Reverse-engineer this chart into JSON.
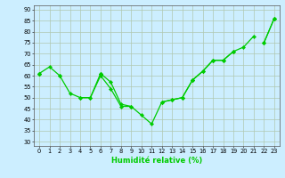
{
  "x_values": [
    0,
    1,
    2,
    3,
    4,
    5,
    6,
    7,
    8,
    9,
    10,
    11,
    12,
    13,
    14,
    15,
    16,
    17,
    18,
    19,
    20,
    21,
    22,
    23
  ],
  "series": [
    [
      61,
      64,
      60,
      52,
      50,
      50,
      61,
      57,
      47,
      46,
      42,
      38,
      48,
      49,
      50,
      58,
      62,
      67,
      67,
      71,
      73,
      78,
      null,
      86
    ],
    [
      61,
      null,
      60,
      null,
      50,
      50,
      60,
      54,
      46,
      46,
      null,
      null,
      null,
      null,
      null,
      58,
      null,
      67,
      null,
      null,
      null,
      null,
      null,
      null
    ],
    [
      61,
      null,
      null,
      null,
      null,
      null,
      61,
      null,
      null,
      null,
      null,
      null,
      48,
      49,
      50,
      58,
      62,
      67,
      67,
      71,
      null,
      null,
      75,
      86
    ],
    [
      61,
      null,
      null,
      null,
      null,
      null,
      61,
      null,
      null,
      null,
      null,
      null,
      null,
      null,
      null,
      null,
      null,
      null,
      null,
      null,
      null,
      null,
      75,
      86
    ]
  ],
  "line_color": "#00cc00",
  "bg_color": "#cceeff",
  "grid_color": "#b0c8b0",
  "xlabel": "Humidité relative (%)",
  "ylabel_ticks": [
    30,
    35,
    40,
    45,
    50,
    55,
    60,
    65,
    70,
    75,
    80,
    85,
    90
  ],
  "ylim": [
    28,
    92
  ],
  "xlim": [
    -0.5,
    23.5
  ]
}
